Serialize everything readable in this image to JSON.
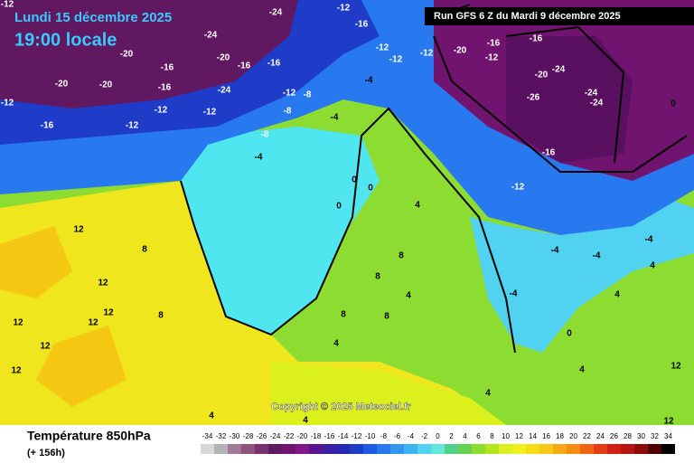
{
  "header": {
    "date": "Lundi 15 décembre 2025",
    "time": "19:00 locale",
    "run": "Run GFS 6 Z du Mardi 9 décembre 2025"
  },
  "copyright": "Copyright © 2025 Meteociel.fr",
  "footer": {
    "title": "Température 850hPa",
    "lead": "(+ 156h)"
  },
  "map_labels": [
    "-12",
    "-24",
    "-12",
    "-16",
    "-24",
    "-20",
    "-16",
    "-20",
    "-16",
    "-16",
    "-20",
    "-20",
    "-16",
    "-24",
    "-12",
    "-16",
    "-12",
    "-12",
    "-12",
    "-12",
    "-8",
    "-8",
    "-4",
    "-12",
    "-12",
    "-12",
    "-20",
    "-16",
    "-12",
    "-16",
    "-20",
    "-24",
    "-26",
    "-24",
    "-24",
    "-16",
    "-12",
    "-8",
    "-4",
    "-4",
    "0",
    "0",
    "0",
    "4",
    "8",
    "8",
    "8",
    "8",
    "4",
    "4",
    "8",
    "12",
    "12",
    "12",
    "12",
    "12",
    "12",
    "12",
    "8",
    "4",
    "4",
    "4",
    "-4",
    "-4",
    "4",
    "-4",
    "0",
    "4",
    "4",
    "12",
    "12",
    "0",
    "-4"
  ],
  "colorbar": {
    "ticks": [
      -34,
      -32,
      -30,
      -28,
      -26,
      -24,
      -22,
      -20,
      -18,
      -16,
      -14,
      -12,
      -10,
      -8,
      -6,
      -4,
      -2,
      0,
      2,
      4,
      6,
      8,
      10,
      12,
      14,
      16,
      18,
      20,
      22,
      24,
      26,
      28,
      30,
      32,
      34
    ],
    "colors": [
      "#d8d8d8",
      "#b4b4b4",
      "#a07898",
      "#905080",
      "#783070",
      "#601860",
      "#701470",
      "#801888",
      "#5a1490",
      "#3c1ea0",
      "#2828b4",
      "#1e3cc8",
      "#1e5ae6",
      "#2878f0",
      "#3296f0",
      "#3cb4f0",
      "#50d2f0",
      "#64e6dc",
      "#50d28c",
      "#64d250",
      "#8cdc32",
      "#b4e61e",
      "#dcf01e",
      "#f0f01e",
      "#f5dc14",
      "#f5c814",
      "#f5aa14",
      "#f58c14",
      "#f06414",
      "#e63c14",
      "#d21e14",
      "#b41414",
      "#8c0a0a",
      "#500000",
      "#000000"
    ]
  }
}
